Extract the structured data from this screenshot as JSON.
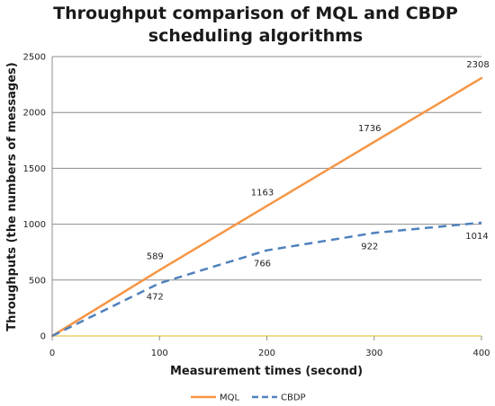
{
  "chart_data": {
    "type": "line",
    "title_line1": "Throughput comparison of MQL and CBDP",
    "title_line2": "scheduling algorithms",
    "xlabel": "Measurement times (second)",
    "ylabel": "Throughputs (the numbers of messages)",
    "x": [
      0,
      100,
      200,
      300,
      400
    ],
    "xlim": [
      0,
      400
    ],
    "ylim": [
      0,
      2500
    ],
    "x_ticks": [
      0,
      100,
      200,
      300,
      400
    ],
    "y_ticks": [
      0,
      500,
      1000,
      1500,
      2000,
      2500
    ],
    "grid": "horizontal",
    "legend_position": "bottom",
    "series": [
      {
        "name": "MQL",
        "color": "#F79646",
        "style": "solid",
        "values": [
          0,
          589,
          1163,
          1736,
          2308
        ],
        "labels": [
          "",
          "589",
          "1163",
          "1736",
          "2308"
        ]
      },
      {
        "name": "CBDP",
        "color": "#4F81BD",
        "style": "dashed",
        "values": [
          0,
          472,
          766,
          922,
          1014
        ],
        "labels": [
          "",
          "472",
          "766",
          "922",
          "1014"
        ]
      }
    ]
  }
}
